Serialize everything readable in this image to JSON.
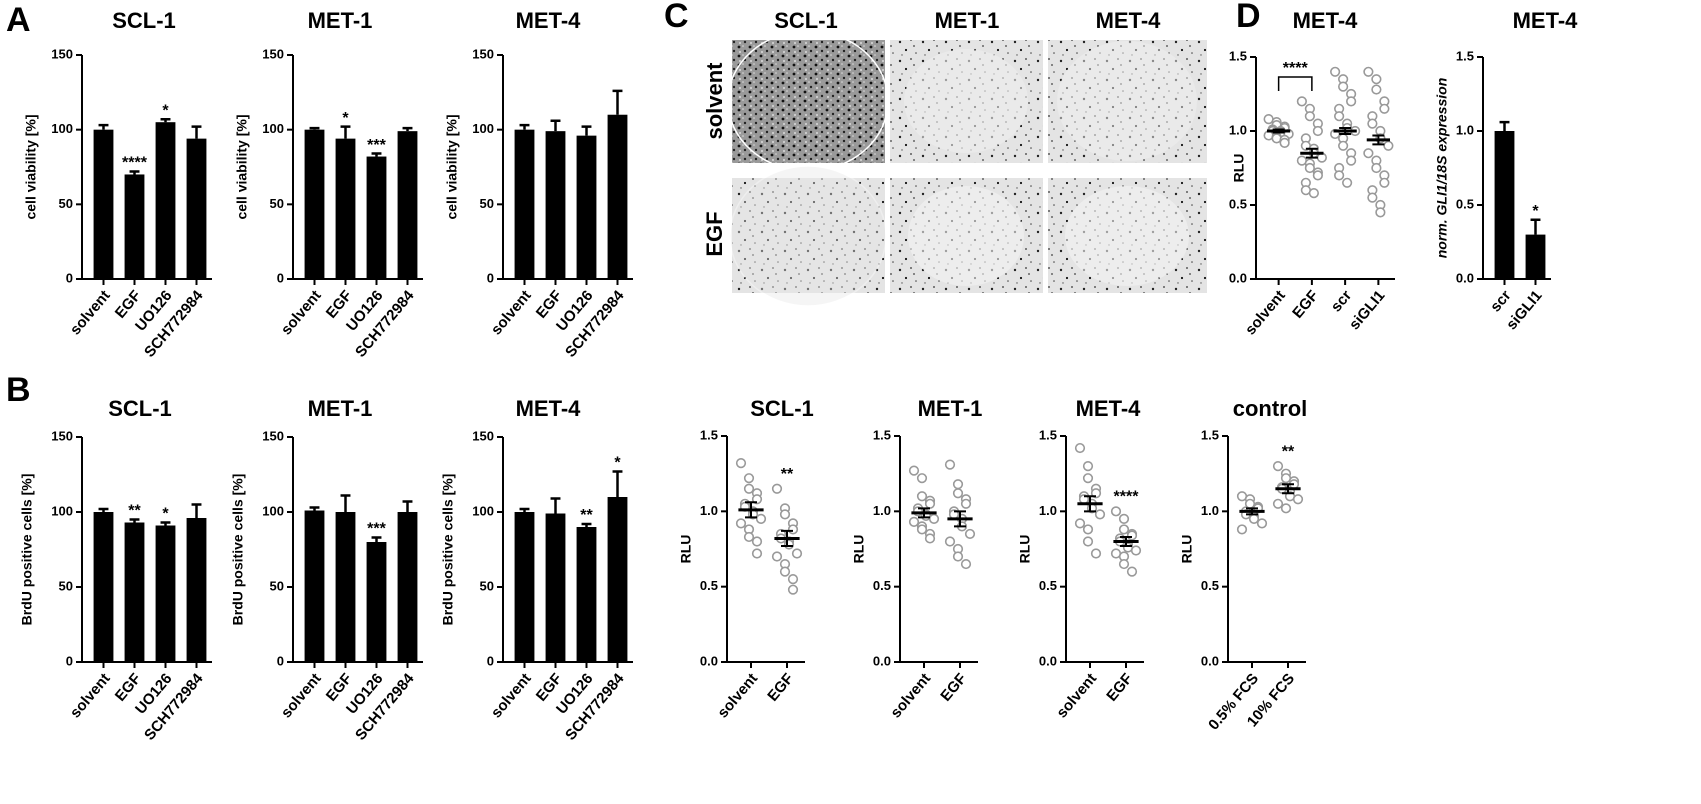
{
  "panel_labels": [
    "A",
    "B",
    "C",
    "D"
  ],
  "image_panel": {
    "columns": [
      "SCL-1",
      "MET-1",
      "MET-4"
    ],
    "rows": [
      "solvent",
      "EGF"
    ]
  },
  "chart_data": [
    {
      "type": "bar",
      "title": "SCL-1",
      "ylabel": "cell viability [%]",
      "categories": [
        "solvent",
        "EGF",
        "UO126",
        "SCH772984"
      ],
      "values": [
        100,
        70,
        105,
        94
      ],
      "errors": [
        3,
        2,
        2,
        8
      ],
      "significance": [
        null,
        "****",
        "*",
        null
      ],
      "color": "#000000",
      "ylim": [
        0,
        150
      ],
      "yticks": [
        0,
        50,
        100,
        150
      ]
    },
    {
      "type": "bar",
      "title": "MET-1",
      "ylabel": "cell viability [%]",
      "categories": [
        "solvent",
        "EGF",
        "UO126",
        "SCH772984"
      ],
      "values": [
        100,
        94,
        82,
        99
      ],
      "errors": [
        1,
        8,
        2,
        2
      ],
      "significance": [
        null,
        "*",
        "***",
        null
      ],
      "color": "#000000",
      "ylim": [
        0,
        150
      ],
      "yticks": [
        0,
        50,
        100,
        150
      ]
    },
    {
      "type": "bar",
      "title": "MET-4",
      "ylabel": "cell viability [%]",
      "categories": [
        "solvent",
        "EGF",
        "UO126",
        "SCH772984"
      ],
      "values": [
        100,
        99,
        96,
        110
      ],
      "errors": [
        3,
        7,
        6,
        16
      ],
      "significance": [
        null,
        null,
        null,
        null
      ],
      "color": "#000000",
      "ylim": [
        0,
        150
      ],
      "yticks": [
        0,
        50,
        100,
        150
      ]
    },
    {
      "type": "bar",
      "title": "SCL-1",
      "ylabel": "BrdU positive cells [%]",
      "categories": [
        "solvent",
        "EGF",
        "UO126",
        "SCH772984"
      ],
      "values": [
        100,
        93,
        91,
        96
      ],
      "errors": [
        2,
        2,
        2,
        9
      ],
      "significance": [
        null,
        "**",
        "*",
        null
      ],
      "color": "#000000",
      "ylim": [
        0,
        150
      ],
      "yticks": [
        0,
        50,
        100,
        150
      ]
    },
    {
      "type": "bar",
      "title": "MET-1",
      "ylabel": "BrdU positive cells [%]",
      "categories": [
        "solvent",
        "EGF",
        "UO126",
        "SCH772984"
      ],
      "values": [
        101,
        100,
        80,
        100
      ],
      "errors": [
        2,
        11,
        3,
        7
      ],
      "significance": [
        null,
        null,
        "***",
        null
      ],
      "color": "#000000",
      "ylim": [
        0,
        150
      ],
      "yticks": [
        0,
        50,
        100,
        150
      ]
    },
    {
      "type": "bar",
      "title": "MET-4",
      "ylabel": "BrdU positive cells [%]",
      "categories": [
        "solvent",
        "EGF",
        "UO126",
        "SCH772984"
      ],
      "values": [
        100,
        99,
        90,
        110
      ],
      "errors": [
        2,
        10,
        2,
        17
      ],
      "significance": [
        null,
        null,
        "**",
        "*"
      ],
      "color": "#000000",
      "ylim": [
        0,
        150
      ],
      "yticks": [
        0,
        50,
        100,
        150
      ]
    },
    {
      "type": "dotplot",
      "title": "SCL-1",
      "ylabel": "RLU",
      "categories": [
        "solvent",
        "EGF"
      ],
      "points": [
        [
          1.32,
          1.22,
          1.15,
          1.12,
          1.08,
          1.05,
          1.03,
          1.0,
          0.98,
          0.95,
          0.92,
          0.88,
          0.83,
          0.8,
          0.72
        ],
        [
          1.15,
          1.02,
          0.98,
          0.92,
          0.88,
          0.85,
          0.82,
          0.8,
          0.78,
          0.72,
          0.7,
          0.65,
          0.6,
          0.55,
          0.48
        ]
      ],
      "means": [
        1.01,
        0.82
      ],
      "errors": [
        0.05,
        0.05
      ],
      "significance": [
        null,
        "**"
      ],
      "color": "#999999",
      "ylim": [
        0,
        1.5
      ],
      "yticks": [
        {
          "value": 0,
          "label": "0.0"
        },
        0.5,
        {
          "value": 1,
          "label": "1.0"
        },
        1.5
      ]
    },
    {
      "type": "dotplot",
      "title": "MET-1",
      "ylabel": "RLU",
      "categories": [
        "solvent",
        "EGF"
      ],
      "points": [
        [
          1.27,
          1.22,
          1.1,
          1.07,
          1.05,
          1.02,
          1.0,
          0.98,
          0.97,
          0.95,
          0.93,
          0.9,
          0.88,
          0.85,
          0.82
        ],
        [
          1.31,
          1.18,
          1.12,
          1.08,
          1.05,
          1.0,
          0.98,
          0.95,
          0.9,
          0.85,
          0.8,
          0.75,
          0.7,
          0.65
        ]
      ],
      "means": [
        0.99,
        0.95
      ],
      "errors": [
        0.03,
        0.05
      ],
      "significance": [
        null,
        null
      ],
      "color": "#999999",
      "ylim": [
        0,
        1.5
      ],
      "yticks": [
        {
          "value": 0,
          "label": "0.0"
        },
        0.5,
        {
          "value": 1,
          "label": "1.0"
        },
        1.5
      ]
    },
    {
      "type": "dotplot",
      "title": "MET-4",
      "ylabel": "RLU",
      "categories": [
        "solvent",
        "EGF"
      ],
      "points": [
        [
          1.42,
          1.3,
          1.22,
          1.15,
          1.12,
          1.1,
          1.08,
          1.05,
          1.02,
          0.98,
          0.92,
          0.88,
          0.8,
          0.72
        ],
        [
          1.0,
          0.95,
          0.88,
          0.85,
          0.84,
          0.82,
          0.8,
          0.78,
          0.76,
          0.74,
          0.72,
          0.7,
          0.65,
          0.6
        ]
      ],
      "means": [
        1.05,
        0.8
      ],
      "errors": [
        0.05,
        0.03
      ],
      "significance": [
        null,
        "****"
      ],
      "color": "#999999",
      "ylim": [
        0,
        1.5
      ],
      "yticks": [
        {
          "value": 0,
          "label": "0.0"
        },
        0.5,
        {
          "value": 1,
          "label": "1.0"
        },
        1.5
      ]
    },
    {
      "type": "dotplot",
      "title": "control",
      "ylabel": "RLU",
      "categories": [
        "0.5% FCS",
        "10% FCS"
      ],
      "points": [
        [
          1.1,
          1.08,
          1.05,
          1.03,
          1.02,
          1.0,
          0.98,
          0.97,
          0.95,
          0.92,
          0.88
        ],
        [
          1.3,
          1.25,
          1.22,
          1.2,
          1.18,
          1.16,
          1.15,
          1.13,
          1.1,
          1.08,
          1.05,
          1.02
        ]
      ],
      "means": [
        1.0,
        1.15
      ],
      "errors": [
        0.02,
        0.03
      ],
      "significance": [
        null,
        "**"
      ],
      "color": "#999999",
      "ylim": [
        0,
        1.5
      ],
      "yticks": [
        {
          "value": 0,
          "label": "0.0"
        },
        0.5,
        {
          "value": 1,
          "label": "1.0"
        },
        1.5
      ]
    },
    {
      "type": "dotplot",
      "title": "MET-4",
      "ylabel": "RLU",
      "categories": [
        "solvent",
        "EGF",
        "scr",
        "siGLI1"
      ],
      "points": [
        [
          1.08,
          1.06,
          1.04,
          1.03,
          1.02,
          1.01,
          1.0,
          1.0,
          0.99,
          0.98,
          0.97,
          0.96,
          0.95,
          0.94,
          0.92
        ],
        [
          1.2,
          1.15,
          1.1,
          1.05,
          1.0,
          0.95,
          0.9,
          0.88,
          0.85,
          0.82,
          0.8,
          0.78,
          0.75,
          0.72,
          0.7,
          0.65,
          0.6,
          0.58
        ],
        [
          1.4,
          1.35,
          1.3,
          1.25,
          1.2,
          1.15,
          1.1,
          1.05,
          1.02,
          1.0,
          0.98,
          0.95,
          0.9,
          0.85,
          0.8,
          0.75,
          0.7,
          0.65
        ],
        [
          1.4,
          1.35,
          1.28,
          1.2,
          1.15,
          1.1,
          1.05,
          1.0,
          0.95,
          0.9,
          0.85,
          0.8,
          0.75,
          0.7,
          0.65,
          0.6,
          0.55,
          0.5,
          0.45
        ]
      ],
      "means": [
        1.0,
        0.85,
        1.0,
        0.94
      ],
      "errors": [
        0.01,
        0.03,
        0.02,
        0.03
      ],
      "significance": [
        null,
        null,
        null,
        null
      ],
      "comparisons": [
        {
          "groups": [
            0,
            1
          ],
          "label": "****"
        }
      ],
      "color": "#999999",
      "ylim": [
        0,
        1.5
      ],
      "yticks": [
        {
          "value": 0,
          "label": "0.0"
        },
        0.5,
        {
          "value": 1,
          "label": "1.0"
        },
        1.5
      ]
    },
    {
      "type": "bar",
      "title": "MET-4",
      "ylabel": "norm. GLI1/18S expression",
      "categories": [
        "scr",
        "siGLI1"
      ],
      "values": [
        1.0,
        0.3
      ],
      "errors": [
        0.06,
        0.1
      ],
      "significance": [
        null,
        "*"
      ],
      "color": "#000000",
      "ylim": [
        0,
        1.5
      ],
      "yticks": [
        {
          "value": 0,
          "label": "0.0"
        },
        0.5,
        {
          "value": 1,
          "label": "1.0"
        },
        1.5
      ]
    }
  ]
}
